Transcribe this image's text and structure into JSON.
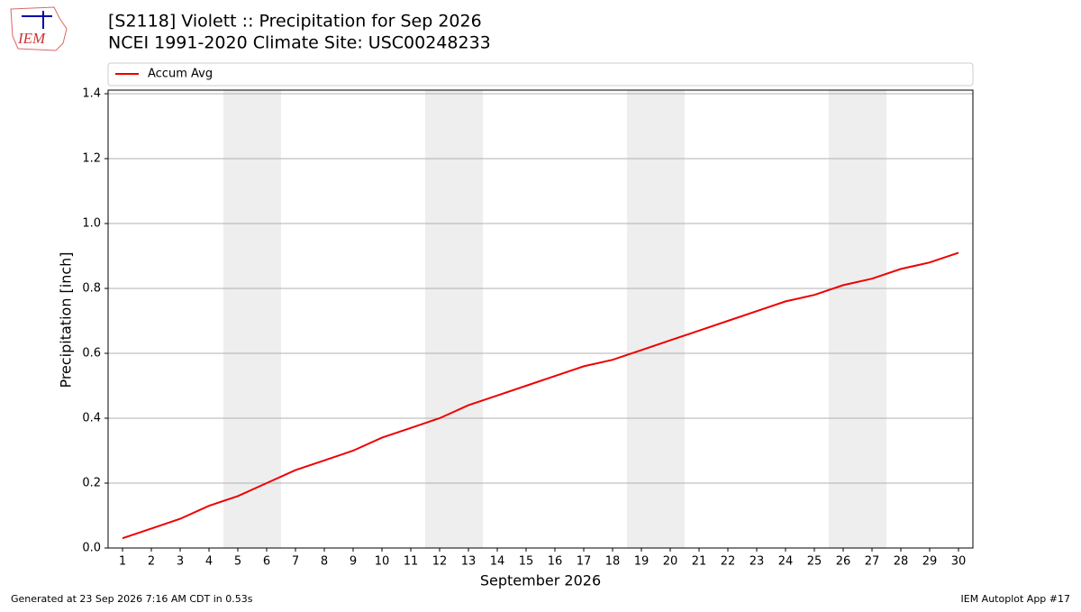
{
  "logo_text": "IEM",
  "chart_data": {
    "type": "line",
    "title": "[S2118] Violett :: Precipitation for Sep 2026",
    "subtitle": "NCEI 1991-2020 Climate Site: USC00248233",
    "x_label": "September 2026",
    "y_label": "Precipitation [inch]",
    "x": [
      1,
      2,
      3,
      4,
      5,
      6,
      7,
      8,
      9,
      10,
      11,
      12,
      13,
      14,
      15,
      16,
      17,
      18,
      19,
      20,
      21,
      22,
      23,
      24,
      25,
      26,
      27,
      28,
      29,
      30
    ],
    "series": [
      {
        "name": "Accum Avg",
        "color": "#ee0000",
        "values": [
          0.03,
          0.06,
          0.09,
          0.13,
          0.16,
          0.2,
          0.24,
          0.27,
          0.3,
          0.34,
          0.37,
          0.4,
          0.44,
          0.47,
          0.5,
          0.53,
          0.56,
          0.58,
          0.61,
          0.64,
          0.67,
          0.7,
          0.73,
          0.76,
          0.78,
          0.81,
          0.83,
          0.86,
          0.88,
          0.91
        ]
      }
    ],
    "xlim": [
      0.5,
      30.5
    ],
    "xticks": [
      1,
      2,
      3,
      4,
      5,
      6,
      7,
      8,
      9,
      10,
      11,
      12,
      13,
      14,
      15,
      16,
      17,
      18,
      19,
      20,
      21,
      22,
      23,
      24,
      25,
      26,
      27,
      28,
      29,
      30
    ],
    "ylim": [
      0,
      1.4
    ],
    "yticks": [
      {
        "value": 0,
        "label": "0.0"
      },
      0.2,
      0.4,
      0.6,
      0.8,
      {
        "value": 1,
        "label": "1.0"
      },
      1.2,
      1.4
    ],
    "grid": "y",
    "shaded_x": [
      5,
      6,
      12,
      13,
      19,
      20,
      26,
      27
    ],
    "shade_color": "#eeeeee",
    "legend": "top"
  },
  "footer": {
    "left": "Generated at 23 Sep 2026 7:16 AM CDT in 0.53s",
    "right": "IEM Autoplot App #17"
  }
}
